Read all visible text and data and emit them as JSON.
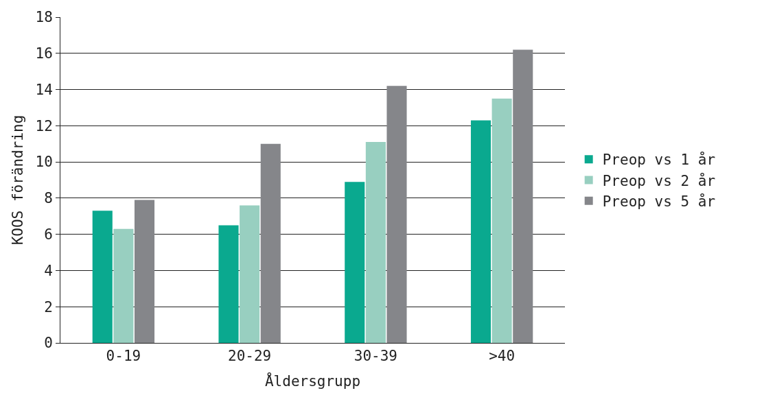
{
  "chart_data": {
    "type": "bar",
    "xlabel": "Åldersgrupp",
    "ylabel": "KOOS förändring",
    "categories": [
      "0-19",
      "20-29",
      "30-39",
      ">40"
    ],
    "series": [
      {
        "name": "Preop vs 1 år",
        "color": "#0aa98f",
        "values": [
          7.3,
          6.5,
          8.9,
          12.3
        ]
      },
      {
        "name": "Preop vs 2 år",
        "color": "#98cfc0",
        "values": [
          6.3,
          7.6,
          11.1,
          13.5
        ]
      },
      {
        "name": "Preop vs 5 år",
        "color": "#85868a",
        "values": [
          7.9,
          11.0,
          14.2,
          16.2
        ]
      }
    ],
    "ylim": [
      0,
      18
    ],
    "yticks": [
      0,
      2,
      4,
      6,
      8,
      10,
      12,
      14,
      16,
      18
    ],
    "grid": "y",
    "legend": "right"
  }
}
